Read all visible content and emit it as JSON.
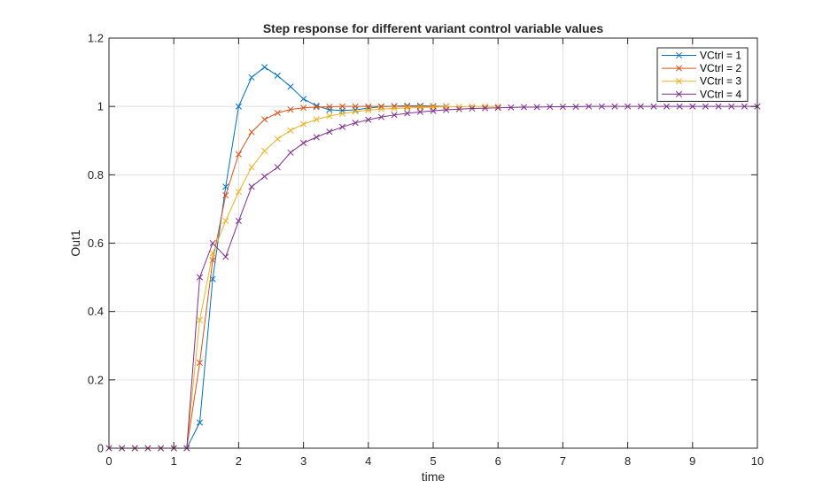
{
  "chart_data": {
    "type": "line",
    "title": "Step response for different variant control variable values",
    "xlabel": "time",
    "ylabel": "Out1",
    "xlim": [
      0,
      10
    ],
    "ylim": [
      0,
      1.2
    ],
    "xticks": [
      "0",
      "1",
      "2",
      "3",
      "4",
      "5",
      "6",
      "7",
      "8",
      "9",
      "10"
    ],
    "yticks": [
      "0",
      "0.2",
      "0.4",
      "0.6",
      "0.8",
      "1",
      "1.2"
    ],
    "grid": true,
    "legend_position": "top-right",
    "marker": "x",
    "series": [
      {
        "name": "VCtrl = 1",
        "color": "#0072BD",
        "x": [
          0,
          0.2,
          0.4,
          0.6,
          0.8,
          1.0,
          1.2,
          1.4,
          1.6,
          1.8,
          2.0,
          2.2,
          2.4,
          2.6,
          2.8,
          3.0,
          3.2,
          3.4,
          3.6,
          3.8,
          4.0,
          4.2,
          4.4,
          4.6,
          4.8,
          5.0,
          5.2
        ],
        "y": [
          0,
          0,
          0,
          0,
          0,
          0,
          0,
          0.075,
          0.495,
          0.765,
          1.0,
          1.085,
          1.115,
          1.09,
          1.058,
          1.022,
          1.002,
          0.99,
          0.988,
          0.99,
          0.995,
          0.999,
          1.001,
          1.002,
          1.002,
          1.001,
          1.0
        ]
      },
      {
        "name": "VCtrl = 2",
        "color": "#D95319",
        "x": [
          0,
          0.2,
          0.4,
          0.6,
          0.8,
          1.0,
          1.2,
          1.4,
          1.6,
          1.8,
          2.0,
          2.2,
          2.4,
          2.6,
          2.8,
          3.0,
          3.2,
          3.4,
          3.6,
          3.8,
          4.0,
          4.2,
          4.4,
          4.6,
          4.8,
          5.0,
          5.2
        ],
        "y": [
          0,
          0,
          0,
          0,
          0,
          0,
          0,
          0.25,
          0.55,
          0.74,
          0.86,
          0.925,
          0.962,
          0.981,
          0.991,
          0.996,
          0.998,
          0.999,
          1.0,
          1.0,
          1.0,
          1.0,
          1.0,
          1.0,
          1.0,
          1.0,
          1.0
        ]
      },
      {
        "name": "VCtrl = 3",
        "color": "#EDB120",
        "x": [
          0,
          0.2,
          0.4,
          0.6,
          0.8,
          1.0,
          1.2,
          1.4,
          1.6,
          1.8,
          2.0,
          2.2,
          2.4,
          2.6,
          2.8,
          3.0,
          3.2,
          3.4,
          3.6,
          3.8,
          4.0,
          4.2,
          4.4,
          4.6,
          4.8,
          5.0,
          5.2,
          5.4,
          5.6,
          5.8,
          6.0
        ],
        "y": [
          0,
          0,
          0,
          0,
          0,
          0,
          0,
          0.375,
          0.57,
          0.665,
          0.75,
          0.822,
          0.87,
          0.905,
          0.93,
          0.948,
          0.962,
          0.972,
          0.979,
          0.985,
          0.989,
          0.992,
          0.994,
          0.996,
          0.997,
          0.998,
          0.999,
          0.999,
          1.0,
          1.0,
          1.0
        ]
      },
      {
        "name": "VCtrl = 4",
        "color": "#7E2F8E",
        "x": [
          0,
          0.2,
          0.4,
          0.6,
          0.8,
          1.0,
          1.2,
          1.4,
          1.6,
          1.8,
          2.0,
          2.2,
          2.4,
          2.6,
          2.8,
          3.0,
          3.2,
          3.4,
          3.6,
          3.8,
          4.0,
          4.2,
          4.4,
          4.6,
          4.8,
          5.0,
          5.2,
          5.4,
          5.6,
          5.8,
          6.0,
          6.2,
          6.4,
          6.6,
          6.8,
          7.0,
          7.2,
          7.4,
          7.6,
          7.8,
          8.0,
          8.2,
          8.4,
          8.6,
          8.8,
          9.0,
          9.2,
          9.4,
          9.6,
          9.8,
          10.0
        ],
        "y": [
          0,
          0,
          0,
          0,
          0,
          0,
          0,
          0.5,
          0.6,
          0.56,
          0.665,
          0.765,
          0.795,
          0.822,
          0.865,
          0.893,
          0.91,
          0.926,
          0.94,
          0.952,
          0.961,
          0.969,
          0.975,
          0.98,
          0.984,
          0.987,
          0.99,
          0.992,
          0.994,
          0.995,
          0.996,
          0.997,
          0.998,
          0.998,
          0.999,
          0.999,
          0.999,
          1.0,
          1.0,
          1.0,
          1.0,
          1.0,
          1.0,
          1.0,
          1.0,
          1.0,
          1.0,
          1.0,
          1.0,
          1.0,
          1.0
        ]
      }
    ]
  }
}
